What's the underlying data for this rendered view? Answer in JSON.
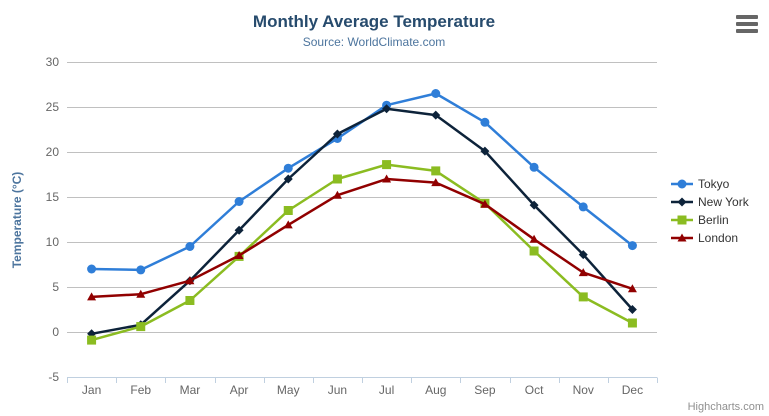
{
  "chart_data": {
    "type": "line",
    "title": "Monthly Average Temperature",
    "subtitle": "Source: WorldClimate.com",
    "categories": [
      "Jan",
      "Feb",
      "Mar",
      "Apr",
      "May",
      "Jun",
      "Jul",
      "Aug",
      "Sep",
      "Oct",
      "Nov",
      "Dec"
    ],
    "xlabel": "",
    "ylabel": "Temperature (°C)",
    "ylim": [
      -5,
      30
    ],
    "ytick_interval": 5,
    "grid": true,
    "legend_position": "right",
    "series": [
      {
        "name": "Tokyo",
        "color": "#2f7ed8",
        "marker": "circle",
        "values": [
          7.0,
          6.9,
          9.5,
          14.5,
          18.2,
          21.5,
          25.2,
          26.5,
          23.3,
          18.3,
          13.9,
          9.6
        ]
      },
      {
        "name": "New York",
        "color": "#0d233a",
        "marker": "diamond",
        "values": [
          -0.2,
          0.8,
          5.7,
          11.3,
          17.0,
          22.0,
          24.8,
          24.1,
          20.1,
          14.1,
          8.6,
          2.5
        ]
      },
      {
        "name": "Berlin",
        "color": "#8bbc21",
        "marker": "square",
        "values": [
          -0.9,
          0.6,
          3.5,
          8.4,
          13.5,
          17.0,
          18.6,
          17.9,
          14.3,
          9.0,
          3.9,
          1.0
        ]
      },
      {
        "name": "London",
        "color": "#910000",
        "marker": "triangle",
        "values": [
          3.9,
          4.2,
          5.7,
          8.5,
          11.9,
          15.2,
          17.0,
          16.6,
          14.2,
          10.3,
          6.6,
          4.8
        ]
      }
    ]
  },
  "colors": {
    "title": "#274b6d",
    "subtitle": "#4d759e",
    "y_axis_title": "#4d759e",
    "axis_label": "#666666",
    "grid_line": "#c0c0c0",
    "axis_line": "#c0d0e0",
    "legend_text": "#333333",
    "credits": "#909090",
    "menu_icon": "#666666"
  },
  "icons": {
    "export_menu": "hamburger-icon"
  },
  "credits": {
    "label": "Highcharts.com"
  }
}
